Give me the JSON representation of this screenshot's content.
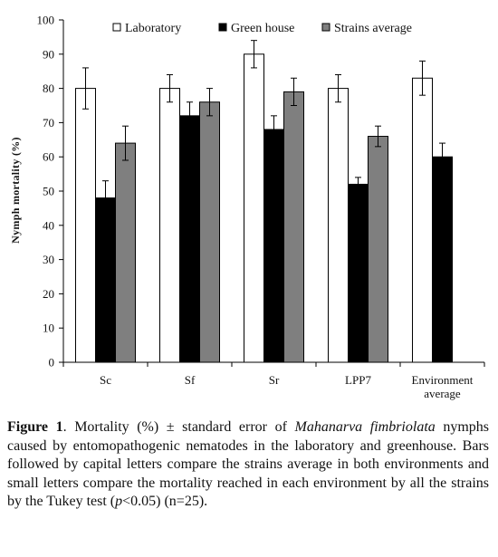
{
  "chart_data": {
    "type": "bar",
    "ylabel": "Nymph mortality (%)",
    "xlabel": "",
    "ylim": [
      0,
      100
    ],
    "yticks": [
      0,
      10,
      20,
      30,
      40,
      50,
      60,
      70,
      80,
      90,
      100
    ],
    "grid": false,
    "legend_position": "top",
    "categories": [
      "Sc",
      "Sf",
      "Sr",
      "LPP7",
      "Environment average"
    ],
    "series": [
      {
        "name": "Laboratory",
        "color": "#ffffff",
        "values": [
          80,
          80,
          90,
          80,
          83
        ],
        "errors": [
          6,
          4,
          4,
          4,
          5
        ]
      },
      {
        "name": "Green house",
        "color": "#000000",
        "values": [
          48,
          72,
          68,
          52,
          60
        ],
        "errors": [
          5,
          4,
          4,
          2,
          4
        ]
      },
      {
        "name": "Strains average",
        "color": "#7f7f7f",
        "values": [
          64,
          76,
          79,
          66,
          null
        ],
        "errors": [
          5,
          4,
          4,
          3,
          null
        ]
      }
    ]
  },
  "caption": {
    "label": "Figure 1",
    "text_before": ". Mortality (%) ± standard error of ",
    "species": "Mahanarva fimbriolata",
    "text_middle": " nymphs caused by entomopathogenic nematodes in the laboratory and greenhouse. Bars followed by capital letters compare the strains average in both environments and small letters compare the mortality reached in each environment by all the strains by the Tukey test (",
    "p_symbol": "p",
    "text_after": "<0.05) (n=25)."
  }
}
